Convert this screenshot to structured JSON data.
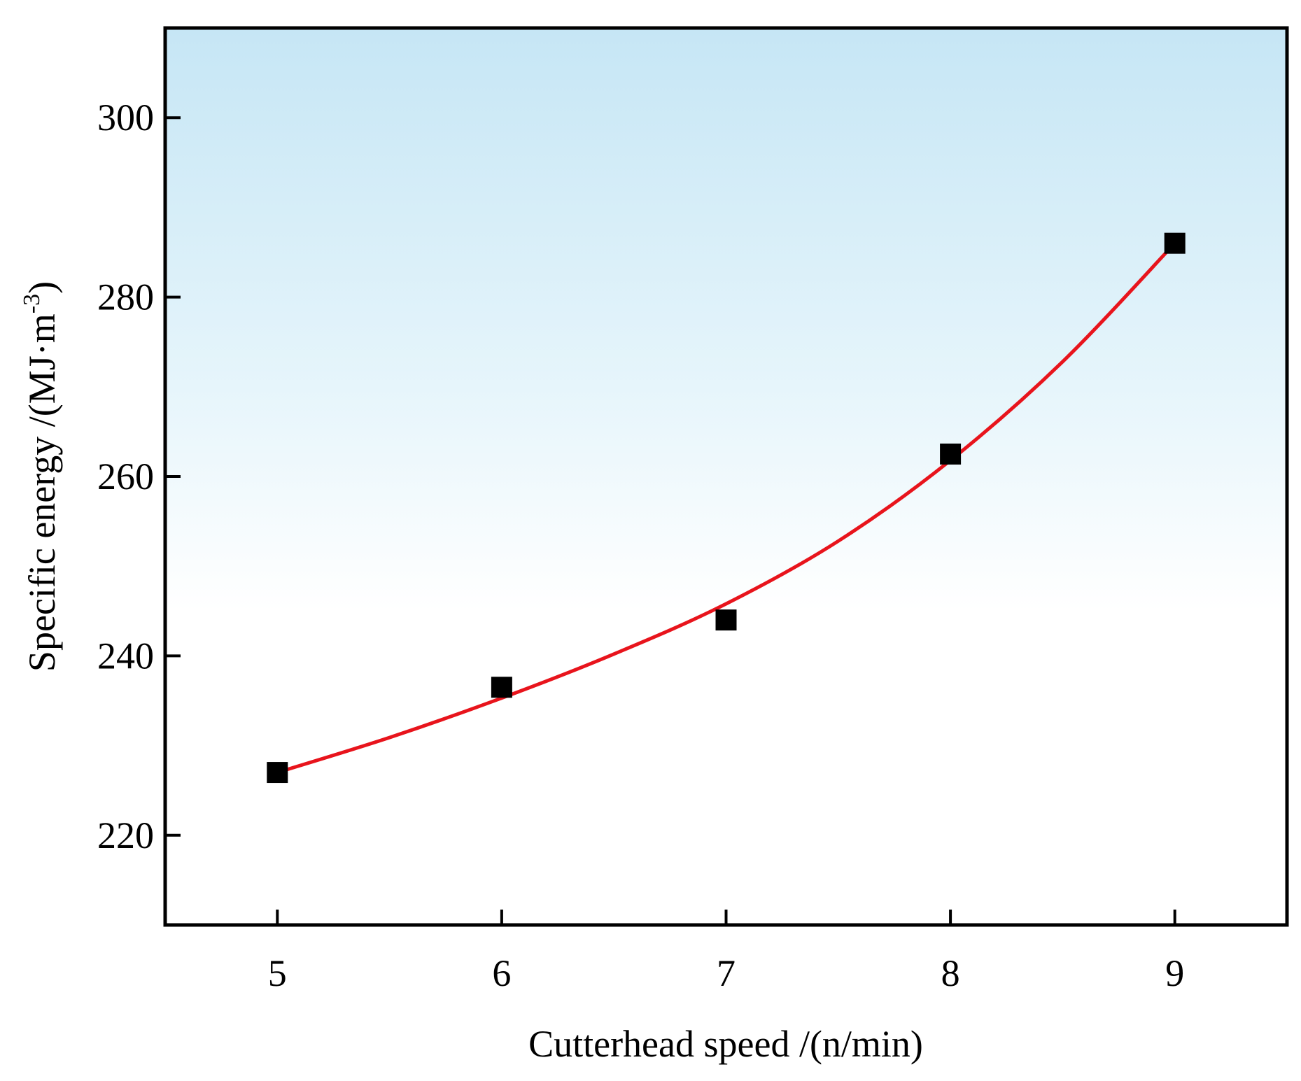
{
  "chart_data": {
    "type": "scatter",
    "title": "",
    "xlabel": "Cutterhead speed /(n/min)",
    "ylabel": {
      "main": "Specific energy /(MJ·m",
      "superscript": "-3",
      "close": ")"
    },
    "xlim": [
      4.5,
      9.5
    ],
    "ylim": [
      210,
      310
    ],
    "xticks": [
      5,
      6,
      7,
      8,
      9
    ],
    "yticks": [
      220,
      240,
      260,
      280,
      300
    ],
    "grid": false,
    "legend": "none",
    "background_gradient": {
      "top": "#c6e6f5",
      "bottom": "#ffffff"
    },
    "series": [
      {
        "name": "measured",
        "kind": "points",
        "marker": "square",
        "color": "#000000",
        "x": [
          5,
          6,
          7,
          8,
          9
        ],
        "y": [
          227,
          236.5,
          244,
          262.5,
          286
        ]
      },
      {
        "name": "fit",
        "kind": "line",
        "color": "#e8141c",
        "x": [
          5,
          5.5,
          6,
          6.5,
          7,
          7.5,
          8,
          8.5,
          9
        ],
        "y": [
          227,
          230.9,
          235.3,
          240.2,
          245.8,
          252.8,
          261.8,
          272.8,
          286
        ]
      }
    ]
  }
}
